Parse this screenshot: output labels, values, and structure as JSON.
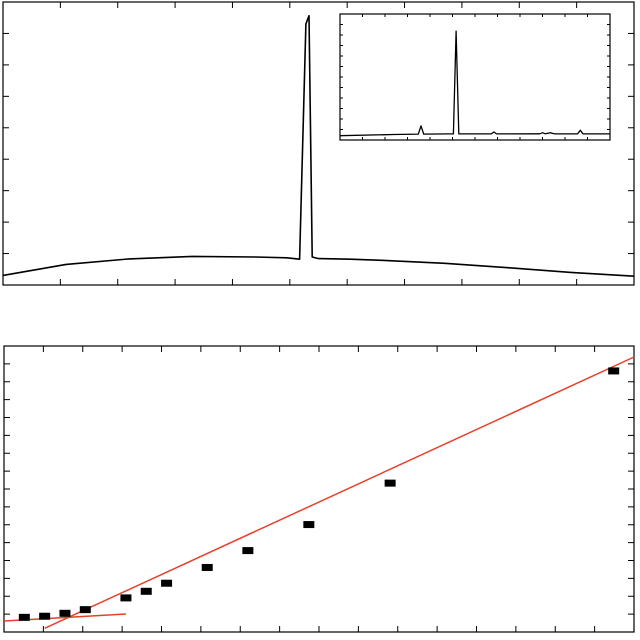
{
  "chart_data": [
    {
      "type": "line",
      "title": "",
      "xlabel": "",
      "ylabel": "",
      "grid": false,
      "colors": {
        "line": "#000000",
        "frame": "#000000"
      },
      "series": [
        {
          "x": [
            0,
            10,
            20,
            30,
            40,
            45,
            47,
            48,
            48.5,
            49,
            50,
            55,
            60,
            70,
            80,
            90,
            100
          ],
          "values": [
            0.5,
            4.5,
            6.5,
            7.4,
            7.2,
            6.9,
            6.4,
            92,
            95,
            7.2,
            6.6,
            6.4,
            6.0,
            4.9,
            3.3,
            1.6,
            0.2
          ]
        }
      ],
      "xlim": [
        0,
        100
      ],
      "ylim": [
        -3,
        100
      ],
      "inset": {
        "type": "line",
        "x": [
          0,
          20,
          29,
          30,
          31,
          40,
          42,
          43,
          44,
          45,
          56,
          57,
          58,
          74,
          75,
          76,
          78,
          79,
          80,
          81,
          88,
          89,
          90,
          100
        ],
        "values": [
          0.5,
          1.5,
          1.8,
          8.5,
          1.8,
          2,
          2,
          86,
          2,
          2,
          2,
          3.5,
          2,
          2.1,
          3,
          2.1,
          3,
          2.2,
          2,
          2,
          2,
          5,
          2,
          2
        ],
        "xlim": [
          0,
          100
        ],
        "ylim": [
          -3,
          100
        ]
      }
    },
    {
      "type": "scatter",
      "title": "",
      "xlabel": "",
      "ylabel": "",
      "grid": false,
      "colors": {
        "marker": "#000000",
        "fit": "#e8402a",
        "frame": "#000000"
      },
      "x": [
        1,
        2,
        3,
        4,
        6,
        7,
        8,
        10,
        12,
        15,
        19,
        30
      ],
      "values": [
        1,
        1.3,
        2.1,
        3.1,
        6.3,
        8.1,
        10.3,
        14.6,
        19.2,
        26.3,
        37.6,
        68.2
      ],
      "fit_lines": [
        {
          "x": [
            0,
            6
          ],
          "values": [
            0,
            1.9
          ]
        },
        {
          "x": [
            2,
            31
          ],
          "values": [
            -2,
            72
          ]
        }
      ],
      "xlim": [
        0,
        31
      ],
      "ylim": [
        -3,
        75
      ]
    }
  ]
}
